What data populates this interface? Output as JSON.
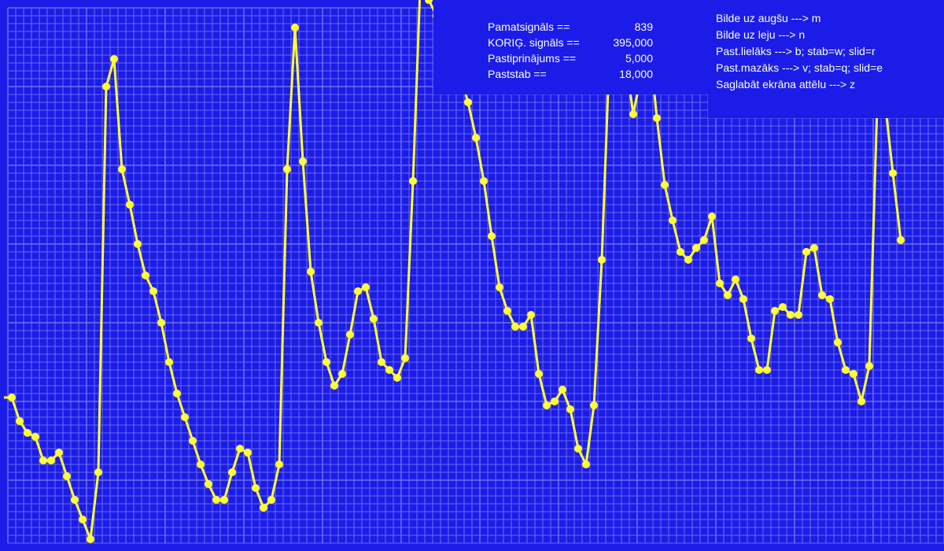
{
  "colors": {
    "background": "#1c1ce8",
    "grid": "#7f7ff2",
    "signal": "#ffff33",
    "text": "#ffffff"
  },
  "info": {
    "rows": [
      {
        "label": "Pamatsignāls ==",
        "value": "839"
      },
      {
        "label": "KORIĢ. signāls ==",
        "value": "395,000"
      },
      {
        "label": "Pastiprinājums ==",
        "value": "5,000"
      },
      {
        "label": "Paststab ==",
        "value": "18,000"
      }
    ]
  },
  "keys": {
    "rows": [
      "Bilde uz augšu ---> m",
      "Bilde uz leju ---> n",
      "Past.lielāks ---> b; stab=w; slid=r",
      "Past.mazāks ---> v; stab=q; slid=e",
      "Saglabāt ekrāna attēlu ---> z"
    ]
  },
  "chart_data": {
    "type": "line",
    "grid": true,
    "series": [
      {
        "values": [
          195,
          165,
          150,
          145,
          115,
          115,
          125,
          95,
          65,
          40,
          15,
          100,
          590,
          625,
          485,
          440,
          390,
          350,
          330,
          290,
          240,
          200,
          170,
          140,
          110,
          85,
          65,
          65,
          100,
          130,
          125,
          80,
          55,
          65,
          110,
          485,
          665,
          495,
          355,
          290,
          240,
          210,
          225,
          275,
          330,
          335,
          295,
          240,
          230,
          220,
          245,
          470,
          740,
          700,
          680,
          660,
          640,
          605,
          570,
          525,
          470,
          400,
          335,
          305,
          285,
          285,
          300,
          225,
          185,
          190,
          205,
          180,
          130,
          110,
          185,
          370,
          640,
          660,
          625,
          555,
          605,
          650,
          550,
          465,
          420,
          380,
          370,
          385,
          395,
          425,
          340,
          325,
          345,
          320,
          270,
          230,
          230,
          305,
          310,
          300,
          300,
          380,
          385,
          325,
          320,
          265,
          230,
          225,
          190,
          235,
          565,
          570,
          480,
          395
        ]
      }
    ]
  }
}
